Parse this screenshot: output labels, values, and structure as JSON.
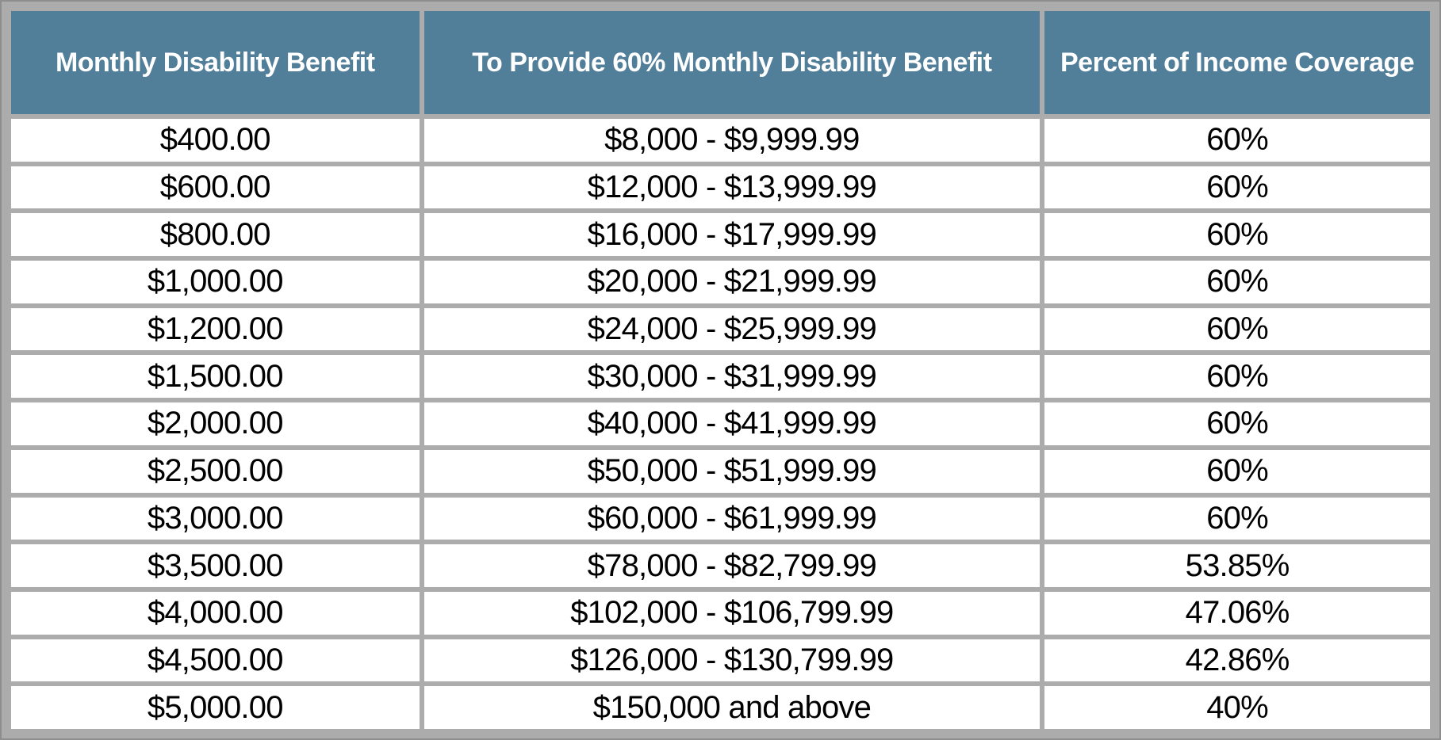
{
  "table": {
    "columns": [
      {
        "label": "Monthly Disability Benefit"
      },
      {
        "label": "To Provide 60% Monthly Disability Benefit"
      },
      {
        "label": "Percent of Income Coverage"
      }
    ],
    "rows": [
      [
        "$400.00",
        "$8,000 - $9,999.99",
        "60%"
      ],
      [
        "$600.00",
        "$12,000 - $13,999.99",
        "60%"
      ],
      [
        "$800.00",
        "$16,000 - $17,999.99",
        "60%"
      ],
      [
        "$1,000.00",
        "$20,000 - $21,999.99",
        "60%"
      ],
      [
        "$1,200.00",
        "$24,000 - $25,999.99",
        "60%"
      ],
      [
        "$1,500.00",
        "$30,000 - $31,999.99",
        "60%"
      ],
      [
        "$2,000.00",
        "$40,000 - $41,999.99",
        "60%"
      ],
      [
        "$2,500.00",
        "$50,000 - $51,999.99",
        "60%"
      ],
      [
        "$3,000.00",
        "$60,000 - $61,999.99",
        "60%"
      ],
      [
        "$3,500.00",
        "$78,000 - $82,799.99",
        "53.85%"
      ],
      [
        "$4,000.00",
        "$102,000 - $106,799.99",
        "47.06%"
      ],
      [
        "$4,500.00",
        "$126,000 - $130,799.99",
        "42.86%"
      ],
      [
        "$5,000.00",
        "$150,000 and above",
        "40%"
      ]
    ]
  },
  "chart_data": {
    "type": "table",
    "title": "",
    "columns": [
      "Monthly Disability Benefit",
      "To Provide 60% Monthly Disability Benefit",
      "Percent of Income Coverage"
    ],
    "rows": [
      [
        "$400.00",
        "$8,000 - $9,999.99",
        "60%"
      ],
      [
        "$600.00",
        "$12,000 - $13,999.99",
        "60%"
      ],
      [
        "$800.00",
        "$16,000 - $17,999.99",
        "60%"
      ],
      [
        "$1,000.00",
        "$20,000 - $21,999.99",
        "60%"
      ],
      [
        "$1,200.00",
        "$24,000 - $25,999.99",
        "60%"
      ],
      [
        "$1,500.00",
        "$30,000 - $31,999.99",
        "60%"
      ],
      [
        "$2,000.00",
        "$40,000 - $41,999.99",
        "60%"
      ],
      [
        "$2,500.00",
        "$50,000 - $51,999.99",
        "60%"
      ],
      [
        "$3,000.00",
        "$60,000 - $61,999.99",
        "60%"
      ],
      [
        "$3,500.00",
        "$78,000 - $82,799.99",
        "53.85%"
      ],
      [
        "$4,000.00",
        "$102,000 - $106,799.99",
        "47.06%"
      ],
      [
        "$4,500.00",
        "$126,000 - $130,799.99",
        "42.86%"
      ],
      [
        "$5,000.00",
        "$150,000 and above",
        "40%"
      ]
    ]
  },
  "colors": {
    "header_bg": "#517E99",
    "header_text": "#FFFFFF",
    "grid": "#ACACAC",
    "frame_edge": "#8E8E8E",
    "row_bg": "#FFFFFF",
    "body_text": "#000000"
  }
}
